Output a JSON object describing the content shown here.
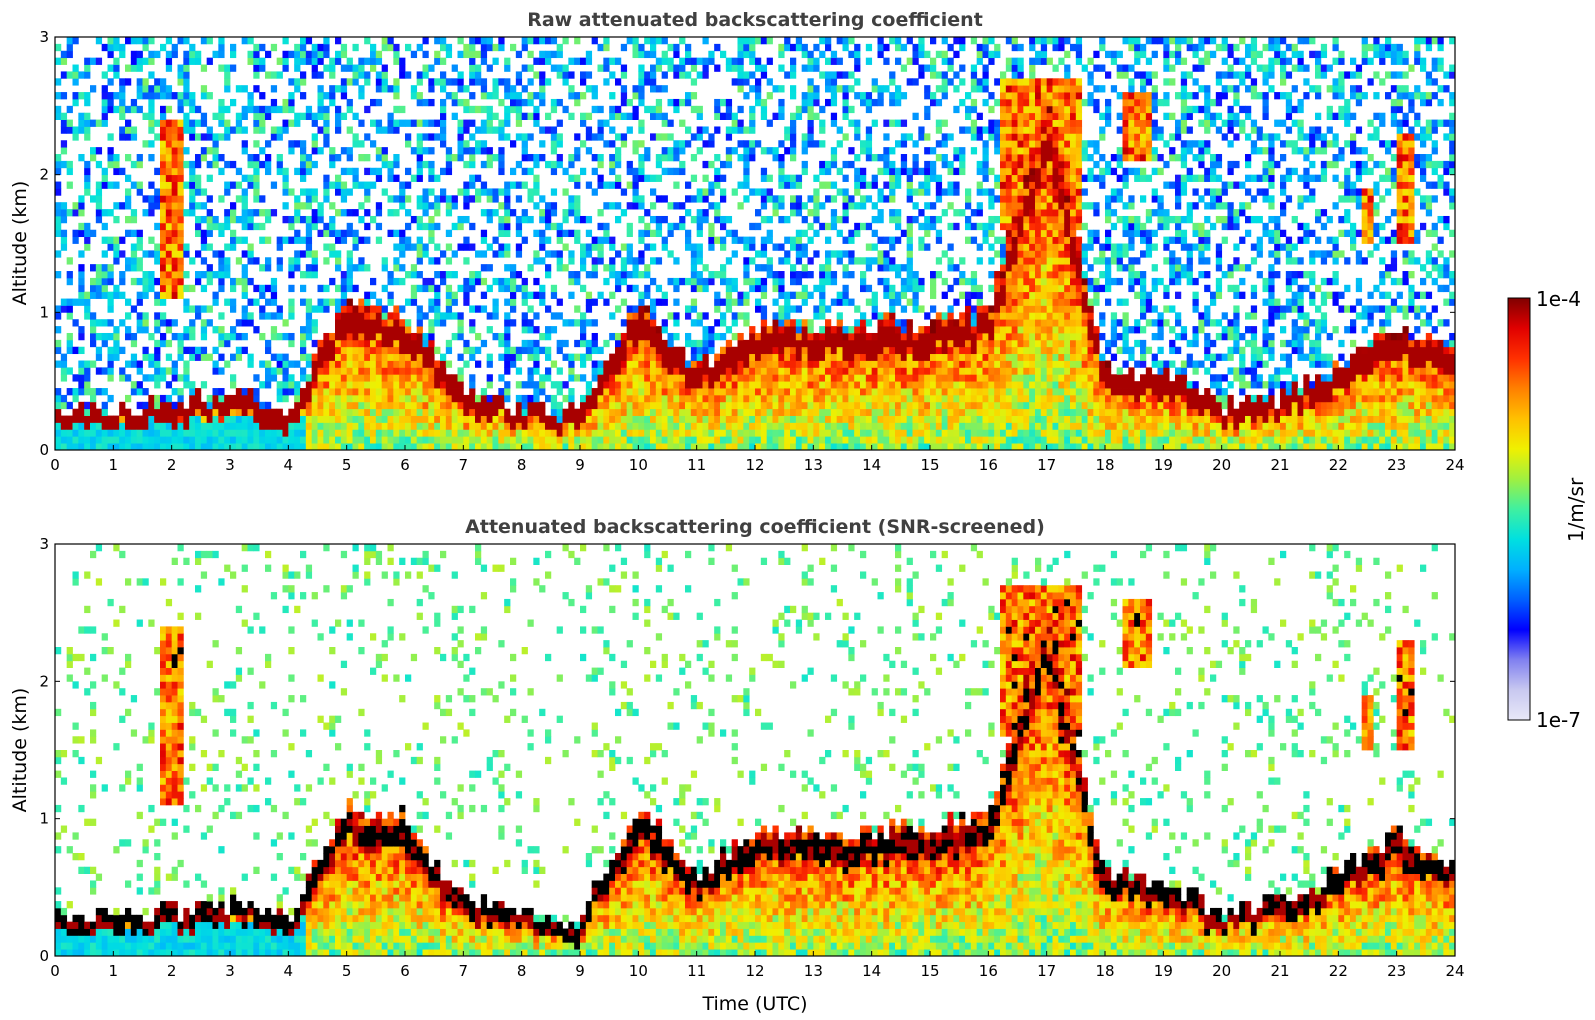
{
  "chart_data": [
    {
      "type": "heatmap",
      "title": "Raw attenuated backscattering coefficient",
      "xlabel": "",
      "ylabel": "Altitude (km)",
      "xlim": [
        0,
        24
      ],
      "ylim": [
        0,
        3
      ],
      "x_ticks": [
        "0",
        "1",
        "2",
        "3",
        "4",
        "5",
        "6",
        "7",
        "8",
        "9",
        "10",
        "11",
        "12",
        "13",
        "14",
        "15",
        "16",
        "17",
        "18",
        "19",
        "20",
        "21",
        "22",
        "23",
        "24"
      ],
      "y_ticks": [
        "0",
        "1",
        "2",
        "3"
      ],
      "variable": "attenuated backscattering coefficient",
      "features": {
        "boundary_layer_top_km": [
          [
            0,
            0.3
          ],
          [
            2,
            0.32
          ],
          [
            3,
            0.4
          ],
          [
            4,
            0.3
          ],
          [
            5,
            1.1
          ],
          [
            6,
            1.0
          ],
          [
            7,
            0.4
          ],
          [
            9,
            0.25
          ],
          [
            10,
            1.1
          ],
          [
            11,
            0.6
          ],
          [
            12,
            0.9
          ],
          [
            14,
            0.9
          ],
          [
            16,
            1.0
          ],
          [
            17,
            2.6
          ],
          [
            18,
            0.6
          ],
          [
            19,
            0.55
          ],
          [
            20,
            0.3
          ],
          [
            21,
            0.4
          ],
          [
            22,
            0.6
          ],
          [
            23,
            0.9
          ],
          [
            24,
            0.7
          ]
        ],
        "elevated_layers": [
          {
            "time_start": 1.8,
            "time_end": 2.2,
            "alt_bottom_km": 1.1,
            "alt_top_km": 2.4
          },
          {
            "time_start": 16.2,
            "time_end": 17.6,
            "alt_bottom_km": 1.6,
            "alt_top_km": 2.7
          },
          {
            "time_start": 18.3,
            "time_end": 18.8,
            "alt_bottom_km": 2.1,
            "alt_top_km": 2.6
          },
          {
            "time_start": 22.4,
            "time_end": 22.6,
            "alt_bottom_km": 1.5,
            "alt_top_km": 1.9
          },
          {
            "time_start": 23.0,
            "time_end": 23.3,
            "alt_bottom_km": 1.5,
            "alt_top_km": 2.3
          }
        ]
      }
    },
    {
      "type": "heatmap",
      "title": "Attenuated backscattering coefficient (SNR-screened)",
      "xlabel": "Time (UTC)",
      "ylabel": "Altitude (km)",
      "xlim": [
        0,
        24
      ],
      "ylim": [
        0,
        3
      ],
      "x_ticks": [
        "0",
        "1",
        "2",
        "3",
        "4",
        "5",
        "6",
        "7",
        "8",
        "9",
        "10",
        "11",
        "12",
        "13",
        "14",
        "15",
        "16",
        "17",
        "18",
        "19",
        "20",
        "21",
        "22",
        "23",
        "24"
      ],
      "y_ticks": [
        "0",
        "1",
        "2",
        "3"
      ],
      "variable": "attenuated backscattering coefficient"
    }
  ],
  "colorbar": {
    "label": "1/m/sr",
    "min_label": "1e-7",
    "max_label": "1e-4",
    "min": 1e-07,
    "max": 0.0001,
    "scale": "log",
    "colormap": [
      "#e8e8f8",
      "#c8c8f0",
      "#8080f0",
      "#0000ff",
      "#0060ff",
      "#00b0ff",
      "#00e0e0",
      "#40f0a0",
      "#a0f040",
      "#f0f000",
      "#ffc000",
      "#ff8000",
      "#ff3000",
      "#e00000",
      "#800000"
    ]
  }
}
